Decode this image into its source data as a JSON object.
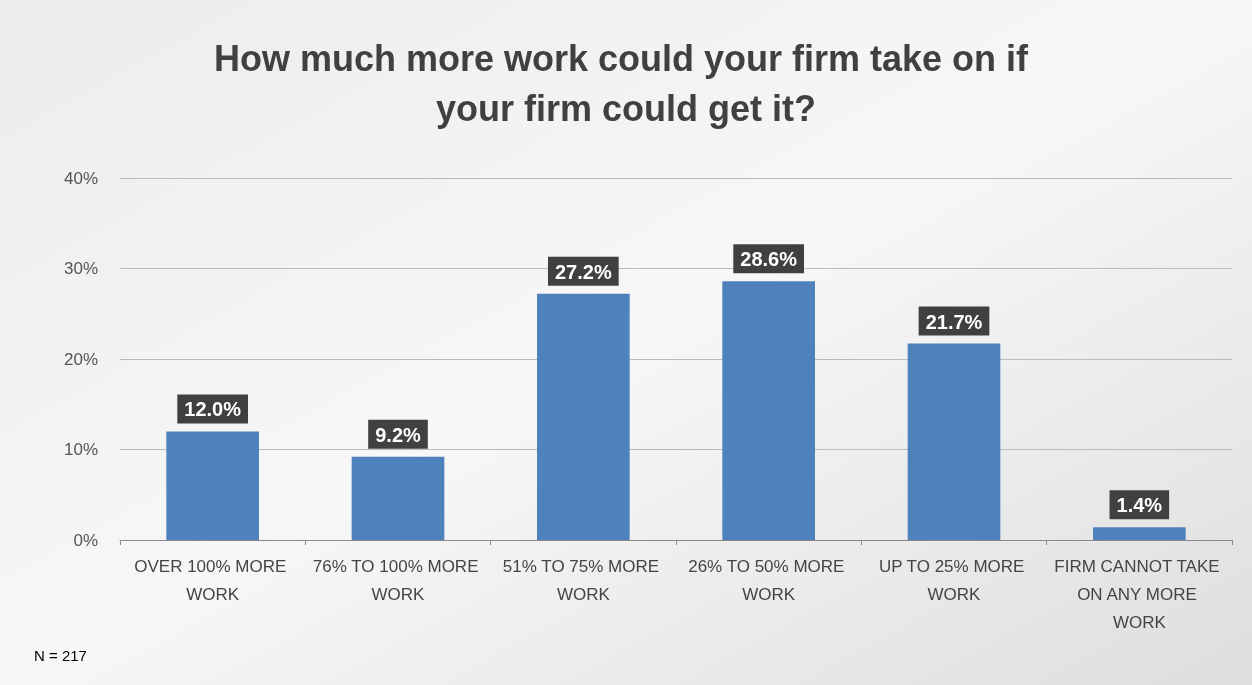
{
  "chart_data": {
    "type": "bar",
    "title": "How much more work could your firm take on if your firm could get it?",
    "categories": [
      "OVER 100% MORE WORK",
      "76% TO 100% MORE WORK",
      "51% TO 75% MORE WORK",
      "26% TO 50% MORE WORK",
      "UP TO 25% MORE WORK",
      "FIRM CANNOT TAKE ON ANY MORE WORK"
    ],
    "values": [
      12.0,
      9.2,
      27.2,
      28.6,
      21.7,
      1.4
    ],
    "value_labels": [
      "12.0%",
      "9.2%",
      "27.2%",
      "28.6%",
      "21.7%",
      "1.4%"
    ],
    "color": "#4f81bd",
    "ylim": [
      0,
      40
    ],
    "yticks": [
      {
        "value": 0,
        "label": "0%"
      },
      {
        "value": 10,
        "label": "10%"
      },
      {
        "value": 20,
        "label": "20%"
      },
      {
        "value": 30,
        "label": "30%"
      },
      {
        "value": 40,
        "label": "40%"
      }
    ],
    "grid": "y",
    "annotations": [
      "N = 217"
    ]
  }
}
